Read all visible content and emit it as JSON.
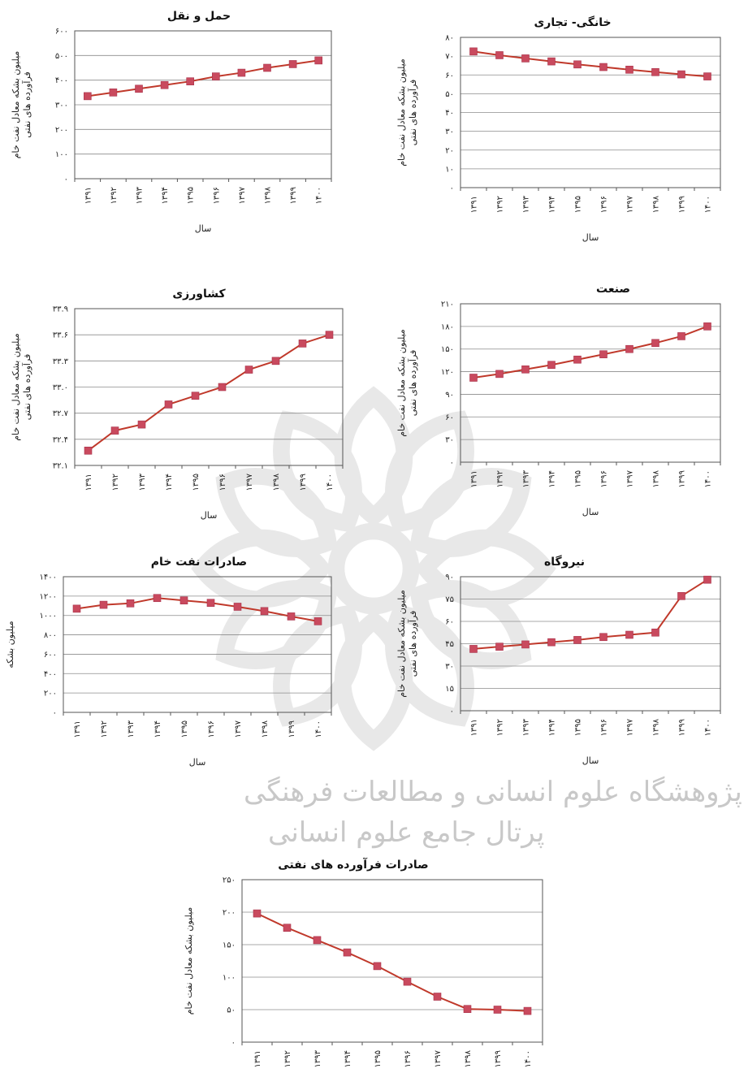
{
  "colors": {
    "line": "#c0392b",
    "marker": "#c94a5e",
    "grid": "#8c8c8c",
    "frame": "#555555"
  },
  "watermark": {
    "line1": "پژوهشگاه علوم انسانی و مطالعات فرهنگی",
    "line2": "پرتال جامع علوم انسانی"
  },
  "chart_data": [
    {
      "type": "line",
      "title": "حمل و نقل",
      "ylabel_lines": [
        "میلیون بشکه معادل نفت خام",
        "فرآورده های نفتی"
      ],
      "xlabel": "سال",
      "ylim": [
        0,
        600
      ],
      "yticks": [
        0,
        100,
        200,
        300,
        400,
        500,
        600
      ],
      "ytick_labels": [
        "۰",
        "۱۰۰",
        "۲۰۰",
        "۳۰۰",
        "۴۰۰",
        "۵۰۰",
        "۶۰۰"
      ],
      "x": [
        "۱۳۹۱",
        "۱۳۹۲",
        "۱۳۹۳",
        "۱۳۹۴",
        "۱۳۹۵",
        "۱۳۹۶",
        "۱۳۹۷",
        "۱۳۹۸",
        "۱۳۹۹",
        "۱۴۰۰"
      ],
      "values": [
        335,
        350,
        365,
        380,
        395,
        415,
        430,
        450,
        465,
        480
      ],
      "grid": true
    },
    {
      "type": "line",
      "title": "خانگی- تجاری",
      "ylabel_lines": [
        "میلیون بشکه معادل نفت خام",
        "فرآورده های نفتی"
      ],
      "xlabel": "سال",
      "ylim": [
        0,
        80
      ],
      "yticks": [
        0,
        10,
        20,
        30,
        40,
        50,
        60,
        70,
        80
      ],
      "ytick_labels": [
        "۰",
        "۱۰",
        "۲۰",
        "۳۰",
        "۴۰",
        "۵۰",
        "۶۰",
        "۷۰",
        "۸۰"
      ],
      "x": [
        "۱۳۹۱",
        "۱۳۹۲",
        "۱۳۹۳",
        "۱۳۹۴",
        "۱۳۹۵",
        "۱۳۹۶",
        "۱۳۹۷",
        "۱۳۹۸",
        "۱۳۹۹",
        "۱۴۰۰"
      ],
      "values": [
        72.5,
        70.5,
        68.8,
        67.2,
        65.6,
        64.2,
        62.8,
        61.5,
        60.3,
        59.2
      ],
      "grid": true
    },
    {
      "type": "line",
      "title": "کشاورزی",
      "ylabel_lines": [
        "میلیون بشکه معادل نفت خام",
        "فرآورده های نفتی"
      ],
      "xlabel": "سال",
      "ylim": [
        32.1,
        33.9
      ],
      "yticks": [
        32.1,
        32.4,
        32.7,
        33.0,
        33.3,
        33.6,
        33.9
      ],
      "ytick_labels": [
        "۳۲.۱",
        "۳۲.۴",
        "۳۲.۷",
        "۳۳.۰",
        "۳۳.۳",
        "۳۳.۶",
        "۳۳.۹"
      ],
      "x": [
        "۱۳۹۱",
        "۱۳۹۲",
        "۱۳۹۳",
        "۱۳۹۴",
        "۱۳۹۵",
        "۱۳۹۶",
        "۱۳۹۷",
        "۱۳۹۸",
        "۱۳۹۹",
        "۱۴۰۰"
      ],
      "values": [
        32.27,
        32.5,
        32.57,
        32.8,
        32.9,
        33.0,
        33.2,
        33.3,
        33.5,
        33.6
      ],
      "grid": true
    },
    {
      "type": "line",
      "title": "صنعت",
      "ylabel_lines": [
        "میلیون بشکه معادل نفت خام",
        "فرآورده های نفتی"
      ],
      "xlabel": "سال",
      "ylim": [
        0,
        210
      ],
      "yticks": [
        0,
        30,
        60,
        90,
        120,
        150,
        180,
        210
      ],
      "ytick_labels": [
        "۰",
        "۳۰",
        "۶۰",
        "۹۰",
        "۱۲۰",
        "۱۵۰",
        "۱۸۰",
        "۲۱۰"
      ],
      "x": [
        "۱۳۹۱",
        "۱۳۹۲",
        "۱۳۹۳",
        "۱۳۹۴",
        "۱۳۹۵",
        "۱۳۹۶",
        "۱۳۹۷",
        "۱۳۹۸",
        "۱۳۹۹",
        "۱۴۰۰"
      ],
      "values": [
        112,
        117,
        123,
        129,
        136,
        143,
        150,
        158,
        167,
        180
      ],
      "grid": true
    },
    {
      "type": "line",
      "title": "صادرات نفت خام",
      "ylabel_lines": [
        "میلیون بشکه"
      ],
      "xlabel": "سال",
      "ylim": [
        0,
        1400
      ],
      "yticks": [
        0,
        200,
        400,
        600,
        800,
        1000,
        1200,
        1400
      ],
      "ytick_labels": [
        "۰",
        "۲۰۰",
        "۴۰۰",
        "۶۰۰",
        "۸۰۰",
        "۱۰۰۰",
        "۱۲۰۰",
        "۱۴۰۰"
      ],
      "x": [
        "۱۳۹۱",
        "۱۳۹۲",
        "۱۳۹۳",
        "۱۳۹۴",
        "۱۳۹۵",
        "۱۳۹۶",
        "۱۳۹۷",
        "۱۳۹۸",
        "۱۳۹۹",
        "۱۴۰۰"
      ],
      "values": [
        1070,
        1110,
        1125,
        1180,
        1155,
        1130,
        1090,
        1045,
        990,
        940
      ],
      "grid": true
    },
    {
      "type": "line",
      "title": "نیروگاه",
      "ylabel_lines": [
        "میلیون بشکه معادل نفت خام",
        "فرآورده های نفتی"
      ],
      "xlabel": "سال",
      "ylim": [
        0,
        90
      ],
      "yticks": [
        0,
        15,
        30,
        45,
        60,
        75,
        90
      ],
      "ytick_labels": [
        "۰",
        "۱۵",
        "۳۰",
        "۴۵",
        "۶۰",
        "۷۵",
        "۹۰"
      ],
      "x": [
        "۱۳۹۱",
        "۱۳۹۲",
        "۱۳۹۳",
        "۱۳۹۴",
        "۱۳۹۵",
        "۱۳۹۶",
        "۱۳۹۷",
        "۱۳۹۸",
        "۱۳۹۹",
        "۱۴۰۰"
      ],
      "values": [
        41.5,
        43,
        44.5,
        46,
        47.5,
        49.5,
        51,
        52.5,
        77,
        88
      ],
      "grid": true
    },
    {
      "type": "line",
      "title": "صادرات فرآورده های نفتی",
      "ylabel_lines": [
        "میلیون بشکه معادل نفت خام"
      ],
      "xlabel": "سال",
      "ylim": [
        0,
        250
      ],
      "yticks": [
        0,
        50,
        100,
        150,
        200,
        250
      ],
      "ytick_labels": [
        "۰",
        "۵۰",
        "۱۰۰",
        "۱۵۰",
        "۲۰۰",
        "۲۵۰"
      ],
      "x": [
        "۱۳۹۱",
        "۱۳۹۲",
        "۱۳۹۳",
        "۱۳۹۴",
        "۱۳۹۵",
        "۱۳۹۶",
        "۱۳۹۷",
        "۱۳۹۸",
        "۱۳۹۹",
        "۱۴۰۰"
      ],
      "values": [
        198,
        176,
        157,
        138,
        117,
        93,
        70,
        51,
        50,
        48
      ],
      "grid": true
    }
  ]
}
